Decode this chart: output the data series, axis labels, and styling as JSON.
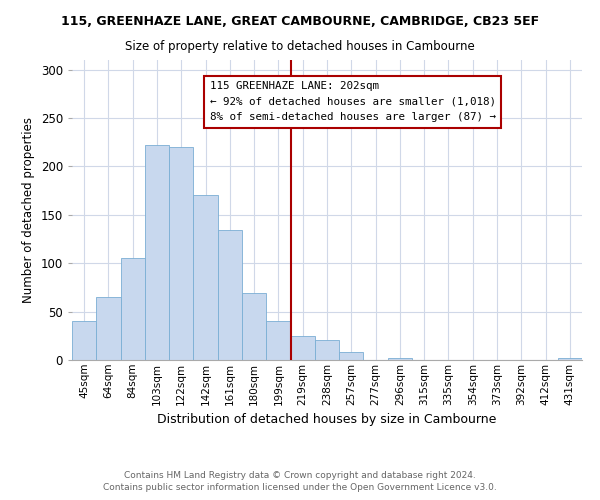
{
  "title": "115, GREENHAZE LANE, GREAT CAMBOURNE, CAMBRIDGE, CB23 5EF",
  "subtitle": "Size of property relative to detached houses in Cambourne",
  "xlabel": "Distribution of detached houses by size in Cambourne",
  "ylabel": "Number of detached properties",
  "footer1": "Contains HM Land Registry data © Crown copyright and database right 2024.",
  "footer2": "Contains public sector information licensed under the Open Government Licence v3.0.",
  "bin_labels": [
    "45sqm",
    "64sqm",
    "84sqm",
    "103sqm",
    "122sqm",
    "142sqm",
    "161sqm",
    "180sqm",
    "199sqm",
    "219sqm",
    "238sqm",
    "257sqm",
    "277sqm",
    "296sqm",
    "315sqm",
    "335sqm",
    "354sqm",
    "373sqm",
    "392sqm",
    "412sqm",
    "431sqm"
  ],
  "bar_heights": [
    40,
    65,
    105,
    222,
    220,
    170,
    134,
    69,
    40,
    25,
    21,
    8,
    0,
    2,
    0,
    0,
    0,
    0,
    0,
    0,
    2
  ],
  "bar_color": "#c8d8ee",
  "bar_edge_color": "#7aaed4",
  "vline_color": "#aa0000",
  "annotation_title": "115 GREENHAZE LANE: 202sqm",
  "annotation_line1": "← 92% of detached houses are smaller (1,018)",
  "annotation_line2": "8% of semi-detached houses are larger (87) →",
  "annotation_box_color": "#ffffff",
  "annotation_box_edge": "#aa0000",
  "ylim": [
    0,
    310
  ],
  "yticks": [
    0,
    50,
    100,
    150,
    200,
    250,
    300
  ]
}
